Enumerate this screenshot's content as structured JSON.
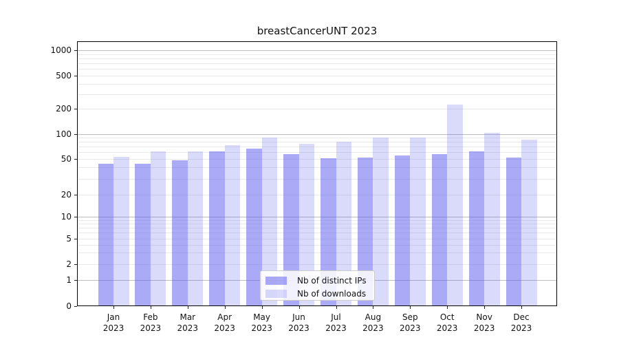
{
  "figure": {
    "title": "breastCancerUNT 2023"
  },
  "chart_data": {
    "type": "bar",
    "title": "breastCancerUNT 2023",
    "yscale": "log",
    "grid": true,
    "legend_position": "lower center",
    "categories": [
      "Jan 2023",
      "Feb 2023",
      "Mar 2023",
      "Apr 2023",
      "May 2023",
      "Jun 2023",
      "Jul 2023",
      "Aug 2023",
      "Sep 2023",
      "Oct 2023",
      "Nov 2023",
      "Dec 2023"
    ],
    "yticks": [
      0,
      1,
      2,
      5,
      10,
      20,
      50,
      100,
      200,
      500,
      1000
    ],
    "ylim": [
      0,
      1400
    ],
    "series": [
      {
        "name": "Nb of distinct IPs",
        "color": "#5555ee",
        "alpha": 0.5,
        "values": [
          44,
          44,
          48,
          61,
          66,
          57,
          51,
          52,
          55,
          57,
          62,
          52
        ]
      },
      {
        "name": "Nb of downloads",
        "color": "#5555ee",
        "alpha": 0.22,
        "values": [
          53,
          61,
          61,
          73,
          90,
          76,
          81,
          91,
          90,
          225,
          104,
          85
        ]
      }
    ]
  }
}
